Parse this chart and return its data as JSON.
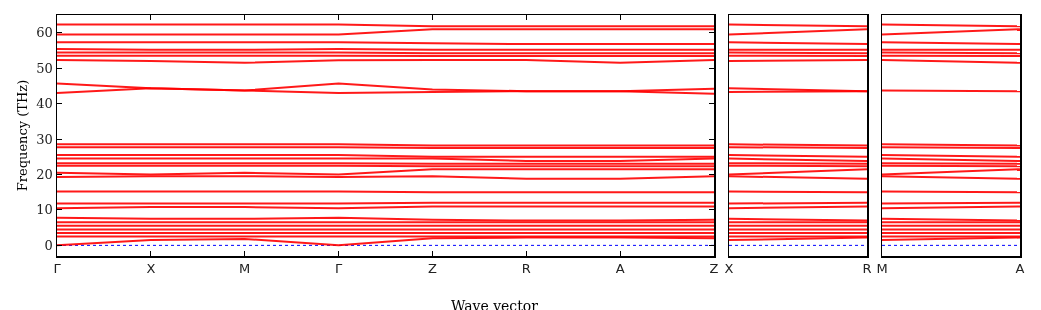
{
  "chart_data": [
    {
      "type": "line",
      "ylabel": "Frequency (THz)",
      "xlabel": "Wave vector",
      "color": "#ff0000",
      "categories": [
        "Γ",
        "X",
        "M",
        "Γ",
        "Z",
        "R",
        "A",
        "Z"
      ],
      "ylim": [
        -3,
        65
      ],
      "yticks": [
        0,
        10,
        20,
        30,
        40,
        50,
        60
      ],
      "ref_lines": [
        {
          "axis": "y",
          "value": 0,
          "color": "#0000ff",
          "line_style": "dotted"
        }
      ],
      "series": [
        {
          "values": [
            62.3,
            62.3,
            62.3,
            62.3,
            61.8,
            61.8,
            61.8,
            61.8
          ]
        },
        {
          "values": [
            59.5,
            59.5,
            59.5,
            59.5,
            61.0,
            61.0,
            61.0,
            61.0
          ]
        },
        {
          "values": [
            57.3,
            57.3,
            57.3,
            57.3,
            57.0,
            56.8,
            56.8,
            56.8
          ]
        },
        {
          "values": [
            55.4,
            55.2,
            55.2,
            55.4,
            55.2,
            55.2,
            55.2,
            55.2
          ]
        },
        {
          "values": [
            54.4,
            54.4,
            54.4,
            54.4,
            54.2,
            54.2,
            54.2,
            54.2
          ]
        },
        {
          "values": [
            53.5,
            53.5,
            53.5,
            53.5,
            53.4,
            53.4,
            53.4,
            53.4
          ]
        },
        {
          "values": [
            52.3,
            52.0,
            51.5,
            52.2,
            52.3,
            52.3,
            51.5,
            52.3
          ]
        },
        {
          "values": [
            45.7,
            44.3,
            43.7,
            45.7,
            44.0,
            43.5,
            43.5,
            44.2
          ]
        },
        {
          "values": [
            43.0,
            44.3,
            43.7,
            43.0,
            43.3,
            43.5,
            43.5,
            42.8
          ]
        },
        {
          "values": [
            28.5,
            28.5,
            28.5,
            28.5,
            28.2,
            28.2,
            28.2,
            28.2
          ]
        },
        {
          "values": [
            27.7,
            27.7,
            27.7,
            27.7,
            27.5,
            27.5,
            27.5,
            27.5
          ]
        },
        {
          "values": [
            25.5,
            25.5,
            25.5,
            25.5,
            25.0,
            25.0,
            25.0,
            25.0
          ]
        },
        {
          "values": [
            24.5,
            24.5,
            24.5,
            24.5,
            24.5,
            23.8,
            23.8,
            24.5
          ]
        },
        {
          "values": [
            23.2,
            23.2,
            23.2,
            23.2,
            23.0,
            23.0,
            23.0,
            23.0
          ]
        },
        {
          "values": [
            22.5,
            22.5,
            22.5,
            22.5,
            22.3,
            22.3,
            22.3,
            22.3
          ]
        },
        {
          "values": [
            20.5,
            20.0,
            20.5,
            20.0,
            21.5,
            21.5,
            21.5,
            21.5
          ]
        },
        {
          "values": [
            19.3,
            19.5,
            19.5,
            19.3,
            19.5,
            18.8,
            18.8,
            19.5
          ]
        },
        {
          "values": [
            15.2,
            15.2,
            15.2,
            15.2,
            15.0,
            15.0,
            15.0,
            15.0
          ]
        },
        {
          "values": [
            11.8,
            11.8,
            11.8,
            11.8,
            12.0,
            12.0,
            12.0,
            12.0
          ]
        },
        {
          "values": [
            10.5,
            10.8,
            10.8,
            10.5,
            11.0,
            11.0,
            11.0,
            11.0
          ]
        },
        {
          "values": [
            7.8,
            7.5,
            7.5,
            7.8,
            7.2,
            7.0,
            7.0,
            7.2
          ]
        },
        {
          "values": [
            6.5,
            6.5,
            6.5,
            6.5,
            6.5,
            6.5,
            6.5,
            6.5
          ]
        },
        {
          "values": [
            5.5,
            5.5,
            5.5,
            5.5,
            5.5,
            5.5,
            5.5,
            5.5
          ]
        },
        {
          "values": [
            4.5,
            4.5,
            4.5,
            4.5,
            4.5,
            4.5,
            4.5,
            4.5
          ]
        },
        {
          "values": [
            3.5,
            3.5,
            3.5,
            3.5,
            3.5,
            3.5,
            3.5,
            3.5
          ]
        },
        {
          "values": [
            2.5,
            2.5,
            2.5,
            2.5,
            2.5,
            2.5,
            2.5,
            2.5
          ]
        },
        {
          "values": [
            0,
            1.5,
            1.8,
            0,
            2.0,
            2.2,
            2.2,
            2.0
          ]
        }
      ]
    },
    {
      "type": "line",
      "color": "#ff0000",
      "tick_labels": "x",
      "categories": [
        "X",
        "R"
      ],
      "ylim": [
        -3,
        65
      ],
      "yticks": [
        0,
        10,
        20,
        30,
        40,
        50,
        60
      ],
      "ref_lines": [
        {
          "axis": "y",
          "value": 0,
          "color": "#0000ff",
          "line_style": "dotted"
        }
      ],
      "series": [
        {
          "values": [
            62.3,
            61.8
          ]
        },
        {
          "values": [
            59.5,
            61.0
          ]
        },
        {
          "values": [
            57.3,
            56.8
          ]
        },
        {
          "values": [
            55.2,
            55.2
          ]
        },
        {
          "values": [
            54.4,
            54.2
          ]
        },
        {
          "values": [
            53.5,
            53.4
          ]
        },
        {
          "values": [
            52.0,
            52.3
          ]
        },
        {
          "values": [
            44.3,
            43.5
          ]
        },
        {
          "values": [
            43.3,
            43.5
          ]
        },
        {
          "values": [
            28.5,
            28.2
          ]
        },
        {
          "values": [
            27.7,
            27.5
          ]
        },
        {
          "values": [
            25.5,
            25.0
          ]
        },
        {
          "values": [
            24.5,
            23.8
          ]
        },
        {
          "values": [
            23.2,
            23.0
          ]
        },
        {
          "values": [
            22.5,
            22.3
          ]
        },
        {
          "values": [
            20.0,
            21.5
          ]
        },
        {
          "values": [
            19.5,
            18.8
          ]
        },
        {
          "values": [
            15.2,
            15.0
          ]
        },
        {
          "values": [
            11.8,
            12.0
          ]
        },
        {
          "values": [
            10.5,
            11.0
          ]
        },
        {
          "values": [
            7.5,
            7.0
          ]
        },
        {
          "values": [
            6.5,
            6.5
          ]
        },
        {
          "values": [
            5.5,
            5.5
          ]
        },
        {
          "values": [
            4.5,
            4.5
          ]
        },
        {
          "values": [
            3.5,
            3.5
          ]
        },
        {
          "values": [
            2.5,
            2.5
          ]
        },
        {
          "values": [
            1.5,
            2.2
          ]
        }
      ]
    },
    {
      "type": "line",
      "color": "#ff0000",
      "tick_labels": "x",
      "categories": [
        "M",
        "A"
      ],
      "ylim": [
        -3,
        65
      ],
      "yticks": [
        0,
        10,
        20,
        30,
        40,
        50,
        60
      ],
      "ref_lines": [
        {
          "axis": "y",
          "value": 0,
          "color": "#0000ff",
          "line_style": "dotted"
        }
      ],
      "series": [
        {
          "values": [
            62.3,
            61.8
          ]
        },
        {
          "values": [
            59.5,
            61.0
          ]
        },
        {
          "values": [
            57.3,
            56.8
          ]
        },
        {
          "values": [
            55.2,
            55.2
          ]
        },
        {
          "values": [
            54.4,
            54.2
          ]
        },
        {
          "values": [
            53.5,
            53.4
          ]
        },
        {
          "values": [
            52.3,
            51.5
          ]
        },
        {
          "values": [
            43.7,
            43.5
          ]
        },
        {
          "values": [
            28.5,
            28.2
          ]
        },
        {
          "values": [
            27.7,
            27.5
          ]
        },
        {
          "values": [
            25.5,
            25.0
          ]
        },
        {
          "values": [
            24.5,
            23.8
          ]
        },
        {
          "values": [
            23.2,
            23.0
          ]
        },
        {
          "values": [
            22.5,
            22.3
          ]
        },
        {
          "values": [
            20.0,
            21.5
          ]
        },
        {
          "values": [
            19.5,
            18.8
          ]
        },
        {
          "values": [
            15.2,
            15.0
          ]
        },
        {
          "values": [
            11.8,
            12.0
          ]
        },
        {
          "values": [
            10.5,
            11.0
          ]
        },
        {
          "values": [
            7.5,
            7.0
          ]
        },
        {
          "values": [
            6.5,
            6.5
          ]
        },
        {
          "values": [
            5.5,
            5.5
          ]
        },
        {
          "values": [
            4.5,
            4.5
          ]
        },
        {
          "values": [
            3.5,
            3.5
          ]
        },
        {
          "values": [
            2.5,
            2.5
          ]
        },
        {
          "values": [
            1.5,
            2.2
          ]
        }
      ]
    }
  ]
}
